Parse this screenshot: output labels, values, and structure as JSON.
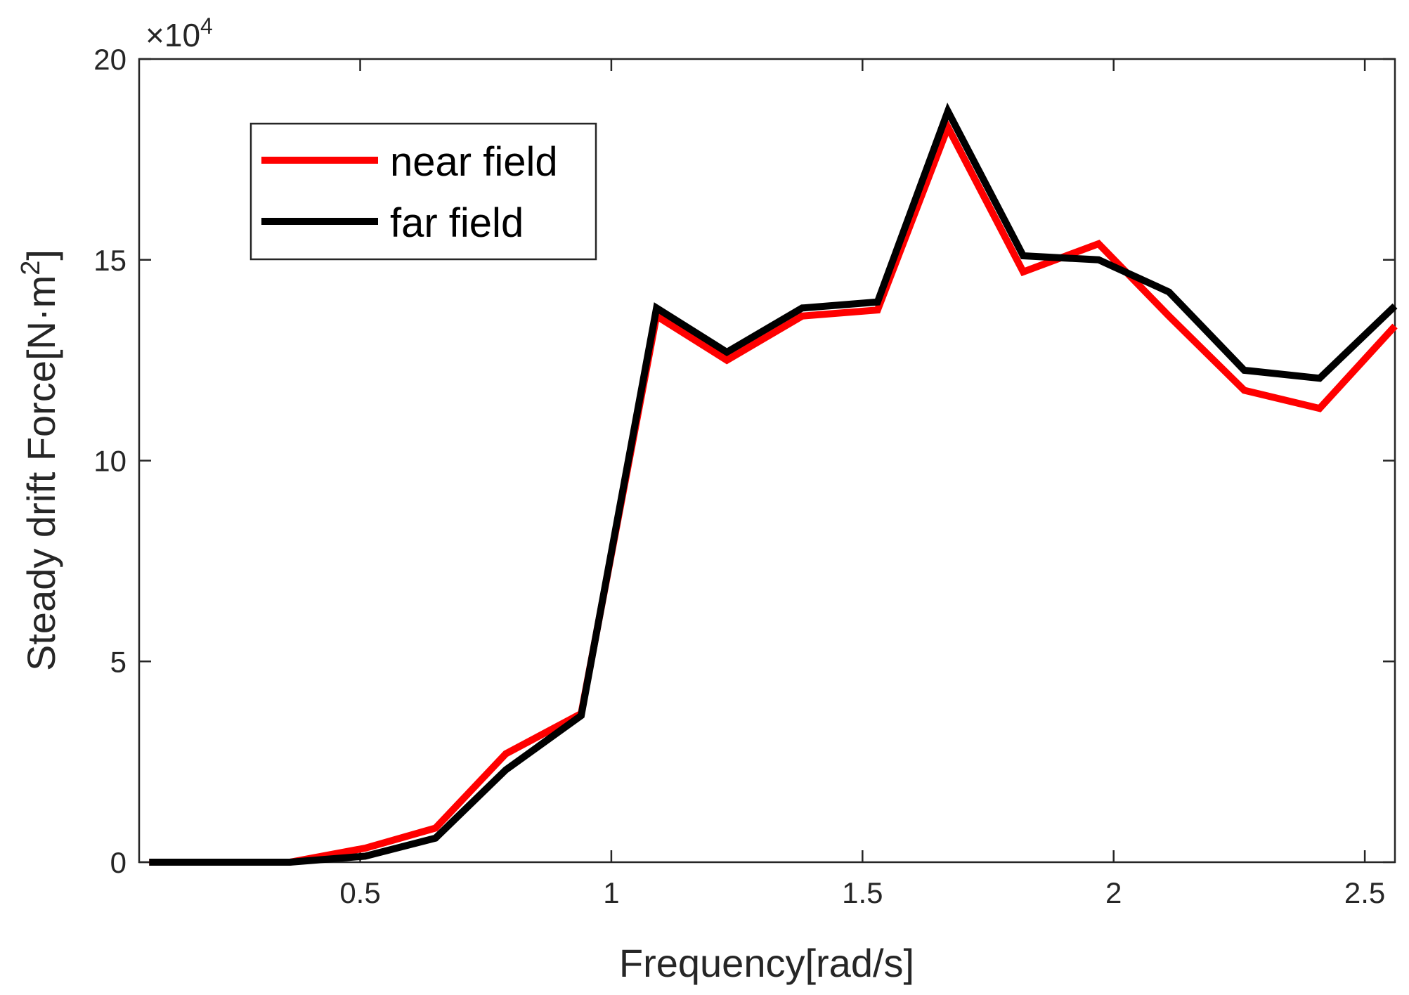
{
  "chart_data": {
    "type": "line",
    "xlabel": "Frequency[rad/s]",
    "ylabel_main": "Steady drift Force[N·m",
    "ylabel_sup": "2",
    "ylabel_close": "]",
    "multiplier_base": "×10",
    "multiplier_exp": "4",
    "xlim": [
      0.06,
      2.56
    ],
    "ylim": [
      0,
      20
    ],
    "xticks": [
      0.5,
      1,
      1.5,
      2,
      2.5
    ],
    "xtick_labels": [
      "0.5",
      "1",
      "1.5",
      "2",
      "2.5"
    ],
    "yticks": [
      0,
      5,
      10,
      15,
      20
    ],
    "ytick_labels": [
      "0",
      "5",
      "10",
      "15",
      "20"
    ],
    "grid": false,
    "legend_position": "top-left",
    "series": [
      {
        "name": "near field",
        "color": "#ff0000",
        "x": [
          0.08,
          0.22,
          0.36,
          0.51,
          0.65,
          0.79,
          0.94,
          1.09,
          1.23,
          1.38,
          1.53,
          1.67,
          1.82,
          1.97,
          2.11,
          2.26,
          2.41,
          2.56
        ],
        "y": [
          0.0,
          0.0,
          0.0,
          0.35,
          0.85,
          2.7,
          3.7,
          13.6,
          12.5,
          13.6,
          13.75,
          18.3,
          14.7,
          15.4,
          13.6,
          11.75,
          11.3,
          13.35
        ]
      },
      {
        "name": "far field",
        "color": "#000000",
        "x": [
          0.08,
          0.22,
          0.36,
          0.51,
          0.65,
          0.79,
          0.94,
          1.09,
          1.23,
          1.38,
          1.53,
          1.67,
          1.82,
          1.97,
          2.11,
          2.26,
          2.41,
          2.56
        ],
        "y": [
          0.0,
          0.0,
          0.0,
          0.15,
          0.6,
          2.3,
          3.65,
          13.8,
          12.7,
          13.8,
          13.95,
          18.7,
          15.1,
          15.0,
          14.2,
          12.25,
          12.05,
          13.85
        ]
      }
    ]
  }
}
